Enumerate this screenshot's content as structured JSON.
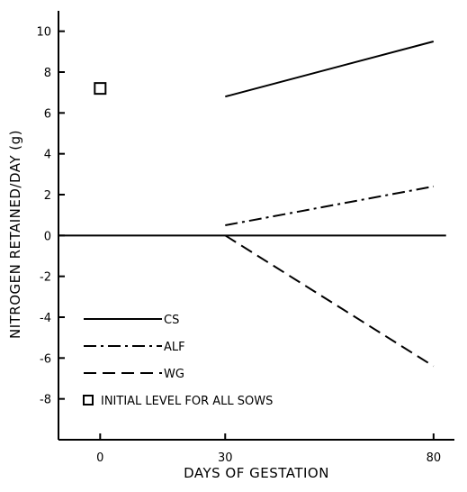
{
  "chart_data": {
    "type": "line",
    "xlabel": "DAYS OF GESTATION",
    "ylabel": "NITROGEN RETAINED/DAY (g)",
    "xlim": [
      -10,
      85
    ],
    "ylim": [
      -10,
      11
    ],
    "x_ticks": [
      0,
      30,
      80
    ],
    "y_ticks": [
      10,
      8,
      6,
      4,
      2,
      0,
      -2,
      -4,
      -6,
      -8
    ],
    "grid": false,
    "legend_position": "bottom-left",
    "series": [
      {
        "name": "CS",
        "style": "solid",
        "x": [
          30,
          80
        ],
        "y": [
          6.8,
          9.5
        ]
      },
      {
        "name": "ALF",
        "style": "dash-dot",
        "x": [
          30,
          80
        ],
        "y": [
          0.5,
          2.4
        ]
      },
      {
        "name": "WG",
        "style": "dashed",
        "x": [
          30,
          80
        ],
        "y": [
          0,
          -6.4
        ]
      }
    ],
    "reference_line": {
      "y": 0
    },
    "markers": [
      {
        "label": "INITIAL LEVEL FOR ALL SOWS",
        "shape": "square",
        "x": 0,
        "y": 7.2
      }
    ]
  }
}
